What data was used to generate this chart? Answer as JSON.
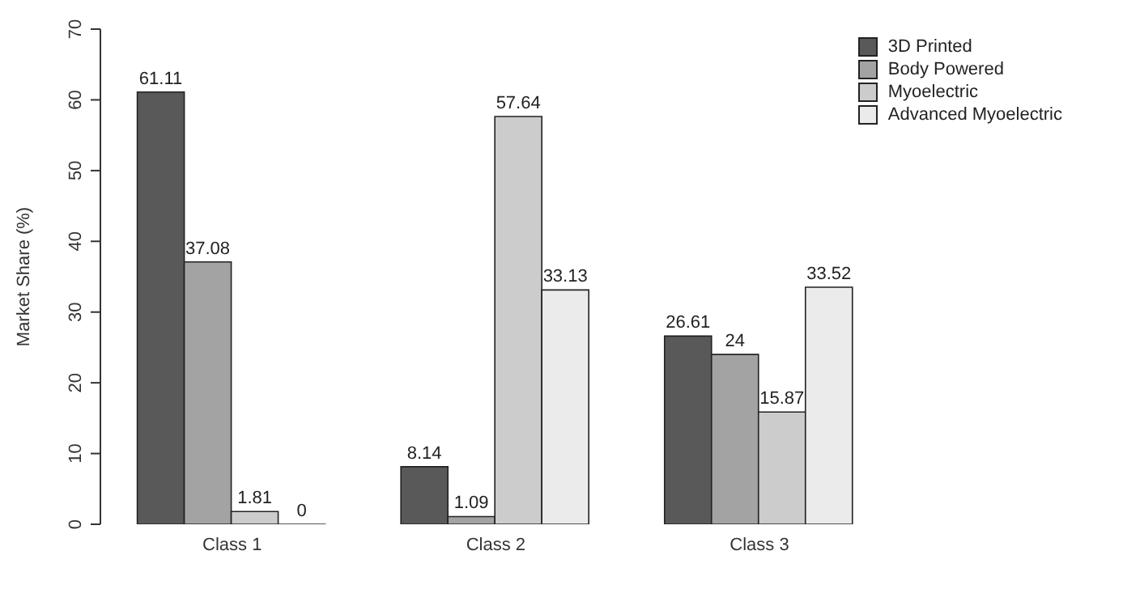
{
  "chart_data": {
    "type": "bar",
    "ylabel": "Market Share (%)",
    "categories": [
      "Class 1",
      "Class 2",
      "Class 3"
    ],
    "series": [
      {
        "name": "3D Printed",
        "color": "#595959",
        "values": [
          61.11,
          8.14,
          26.61
        ]
      },
      {
        "name": "Body Powered",
        "color": "#a3a3a3",
        "values": [
          37.08,
          1.09,
          24
        ]
      },
      {
        "name": "Myoelectric",
        "color": "#cccccc",
        "values": [
          1.81,
          57.64,
          15.87
        ]
      },
      {
        "name": "Advanced Myoelectric",
        "color": "#ebebeb",
        "values": [
          0,
          33.13,
          33.52
        ]
      }
    ],
    "ylim": [
      0,
      70
    ],
    "yticks": [
      0,
      10,
      20,
      30,
      40,
      50,
      60,
      70
    ],
    "grid": false,
    "legend": "top right",
    "data_labels": true
  }
}
